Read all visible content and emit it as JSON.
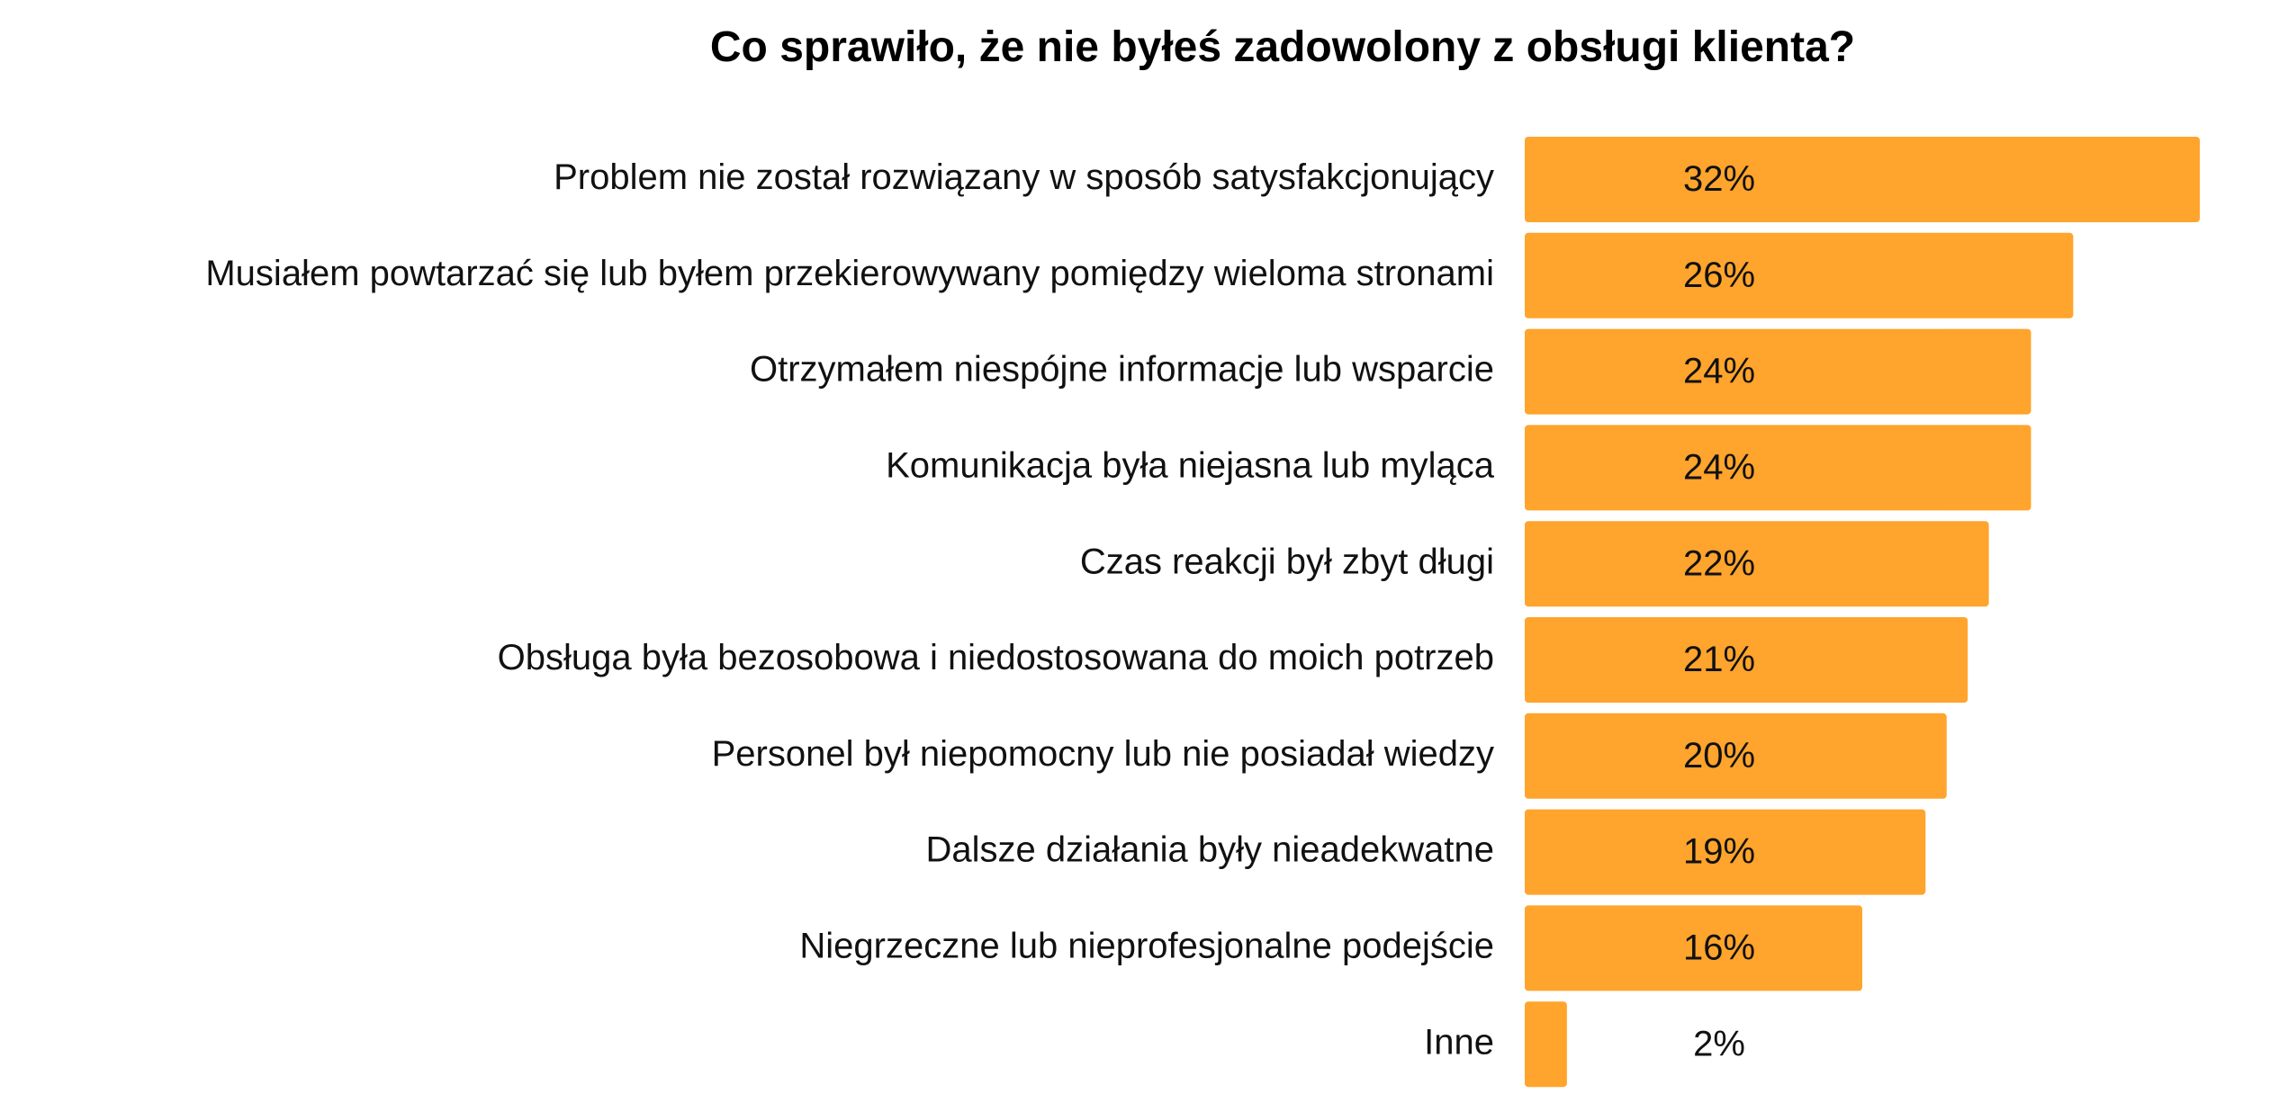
{
  "chart_data": {
    "type": "bar",
    "orientation": "horizontal",
    "title": "Co sprawiło, że nie byłeś zadowolony z obsługi klienta?",
    "categories": [
      "Problem nie został rozwiązany w sposób satysfakcjonujący",
      "Musiałem powtarzać się lub byłem przekierowywany pomiędzy wieloma stronami",
      "Otrzymałem niespójne informacje lub wsparcie",
      "Komunikacja była niejasna lub myląca",
      "Czas reakcji był zbyt długi",
      "Obsługa była bezosobowa i niedostosowana do moich potrzeb",
      "Personel był niepomocny lub nie posiadał wiedzy",
      "Dalsze działania były nieadekwatne",
      "Niegrzeczne lub nieprofesjonalne podejście",
      "Inne"
    ],
    "values": [
      32,
      26,
      24,
      24,
      22,
      21,
      20,
      19,
      16,
      2
    ],
    "value_labels": [
      "32%",
      "26%",
      "24%",
      "24%",
      "22%",
      "21%",
      "20%",
      "19%",
      "16%",
      "2%"
    ],
    "unit": "%",
    "xlim": [
      0,
      32
    ],
    "grid": false,
    "legend": "none",
    "bar_color": "#FFA42C"
  }
}
